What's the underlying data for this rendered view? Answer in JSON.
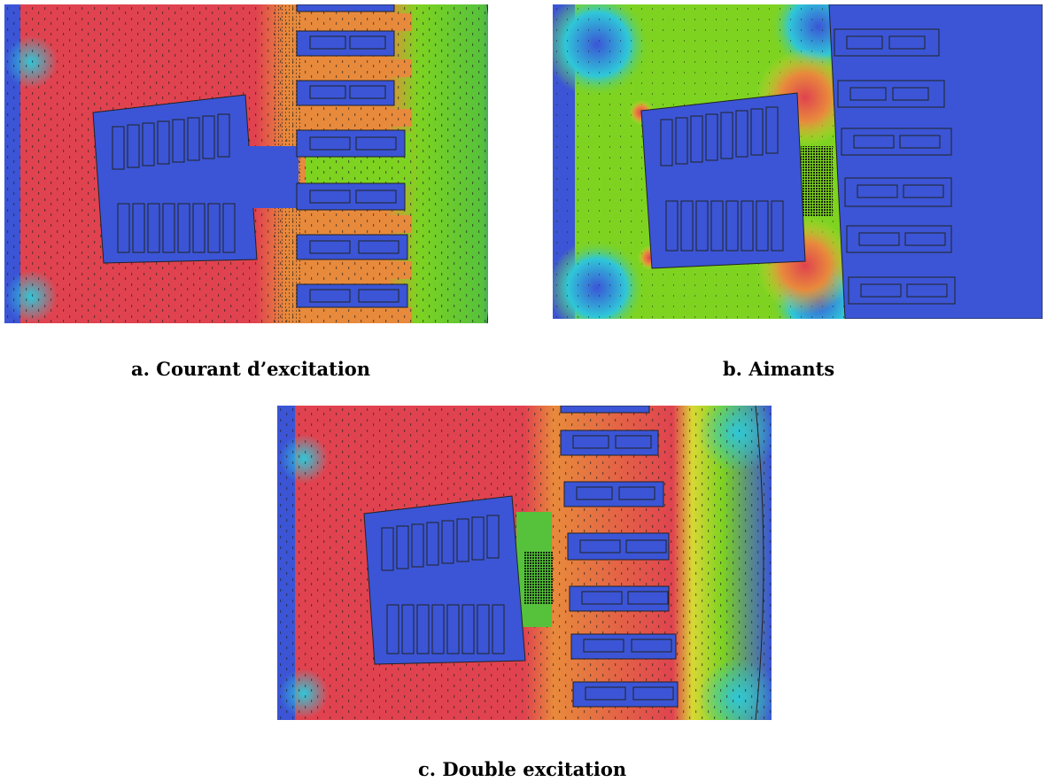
{
  "captions": {
    "a": "a. Courant d’excitation",
    "b": "b. Aimants",
    "c": "c. Double excitation"
  },
  "colors": {
    "blue": "#3b55d6",
    "red": "#e0434f",
    "orange": "#e88a3c",
    "green": "#7ed321",
    "yellow": "#d8d835",
    "cyan": "#2fc7d8"
  }
}
